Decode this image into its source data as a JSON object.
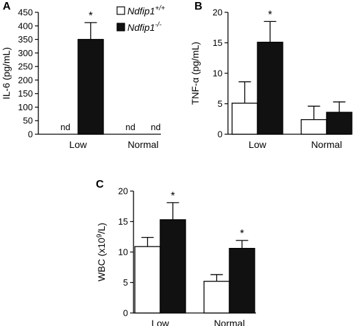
{
  "colors": {
    "wt": "#ffffff",
    "ko": "#111111",
    "stroke": "#000000"
  },
  "legend": {
    "items": [
      {
        "name": "Ndfip1",
        "sup": "+/+",
        "fill": "wt"
      },
      {
        "name": "Ndfip1",
        "sup": "-/-",
        "fill": "ko"
      }
    ]
  },
  "chart_data": [
    {
      "panel": "A",
      "type": "bar",
      "ylabel": "IL-6 (pg/mL)",
      "ylim": [
        0,
        450
      ],
      "yticks": [
        "0",
        "50",
        "100",
        "150",
        "200",
        "250",
        "300",
        "350",
        "400",
        "450"
      ],
      "categories": [
        "Low",
        "Normal"
      ],
      "series": [
        {
          "name": "Ndfip1+/+",
          "fill": "wt",
          "values": [
            null,
            null
          ],
          "errors": [
            null,
            null
          ],
          "labels": [
            "nd",
            "nd"
          ],
          "stars": [
            "",
            ""
          ]
        },
        {
          "name": "Ndfip1-/-",
          "fill": "ko",
          "values": [
            350,
            null
          ],
          "errors": [
            62,
            null
          ],
          "labels": [
            "",
            "nd"
          ],
          "stars": [
            "*",
            ""
          ]
        }
      ]
    },
    {
      "panel": "B",
      "type": "bar",
      "ylabel": "TNF-α (pg/mL)",
      "ylim": [
        0,
        20
      ],
      "yticks": [
        "0",
        "5",
        "10",
        "15",
        "20"
      ],
      "categories": [
        "Low",
        "Normal"
      ],
      "series": [
        {
          "name": "Ndfip1+/+",
          "fill": "wt",
          "values": [
            5.1,
            2.4
          ],
          "errors": [
            3.5,
            2.2
          ],
          "labels": [
            "",
            ""
          ],
          "stars": [
            "",
            ""
          ]
        },
        {
          "name": "Ndfip1-/-",
          "fill": "ko",
          "values": [
            15.1,
            3.6
          ],
          "errors": [
            3.4,
            1.7
          ],
          "labels": [
            "",
            ""
          ],
          "stars": [
            "*",
            ""
          ]
        }
      ]
    },
    {
      "panel": "C",
      "type": "bar",
      "ylabel_main": "WBC (x10",
      "ylabel_sup": "9",
      "ylabel_tail": "/L)",
      "ylim": [
        0,
        20
      ],
      "yticks": [
        "0",
        "5",
        "10",
        "15",
        "20"
      ],
      "categories": [
        "Low",
        "Normal"
      ],
      "series": [
        {
          "name": "Ndfip1+/+",
          "fill": "wt",
          "values": [
            10.9,
            5.2
          ],
          "errors": [
            1.5,
            1.1
          ],
          "labels": [
            "",
            ""
          ],
          "stars": [
            "",
            ""
          ]
        },
        {
          "name": "Ndfip1-/-",
          "fill": "ko",
          "values": [
            15.3,
            10.6
          ],
          "errors": [
            2.8,
            1.3
          ],
          "labels": [
            "",
            ""
          ],
          "stars": [
            "*",
            "*"
          ]
        }
      ]
    }
  ]
}
